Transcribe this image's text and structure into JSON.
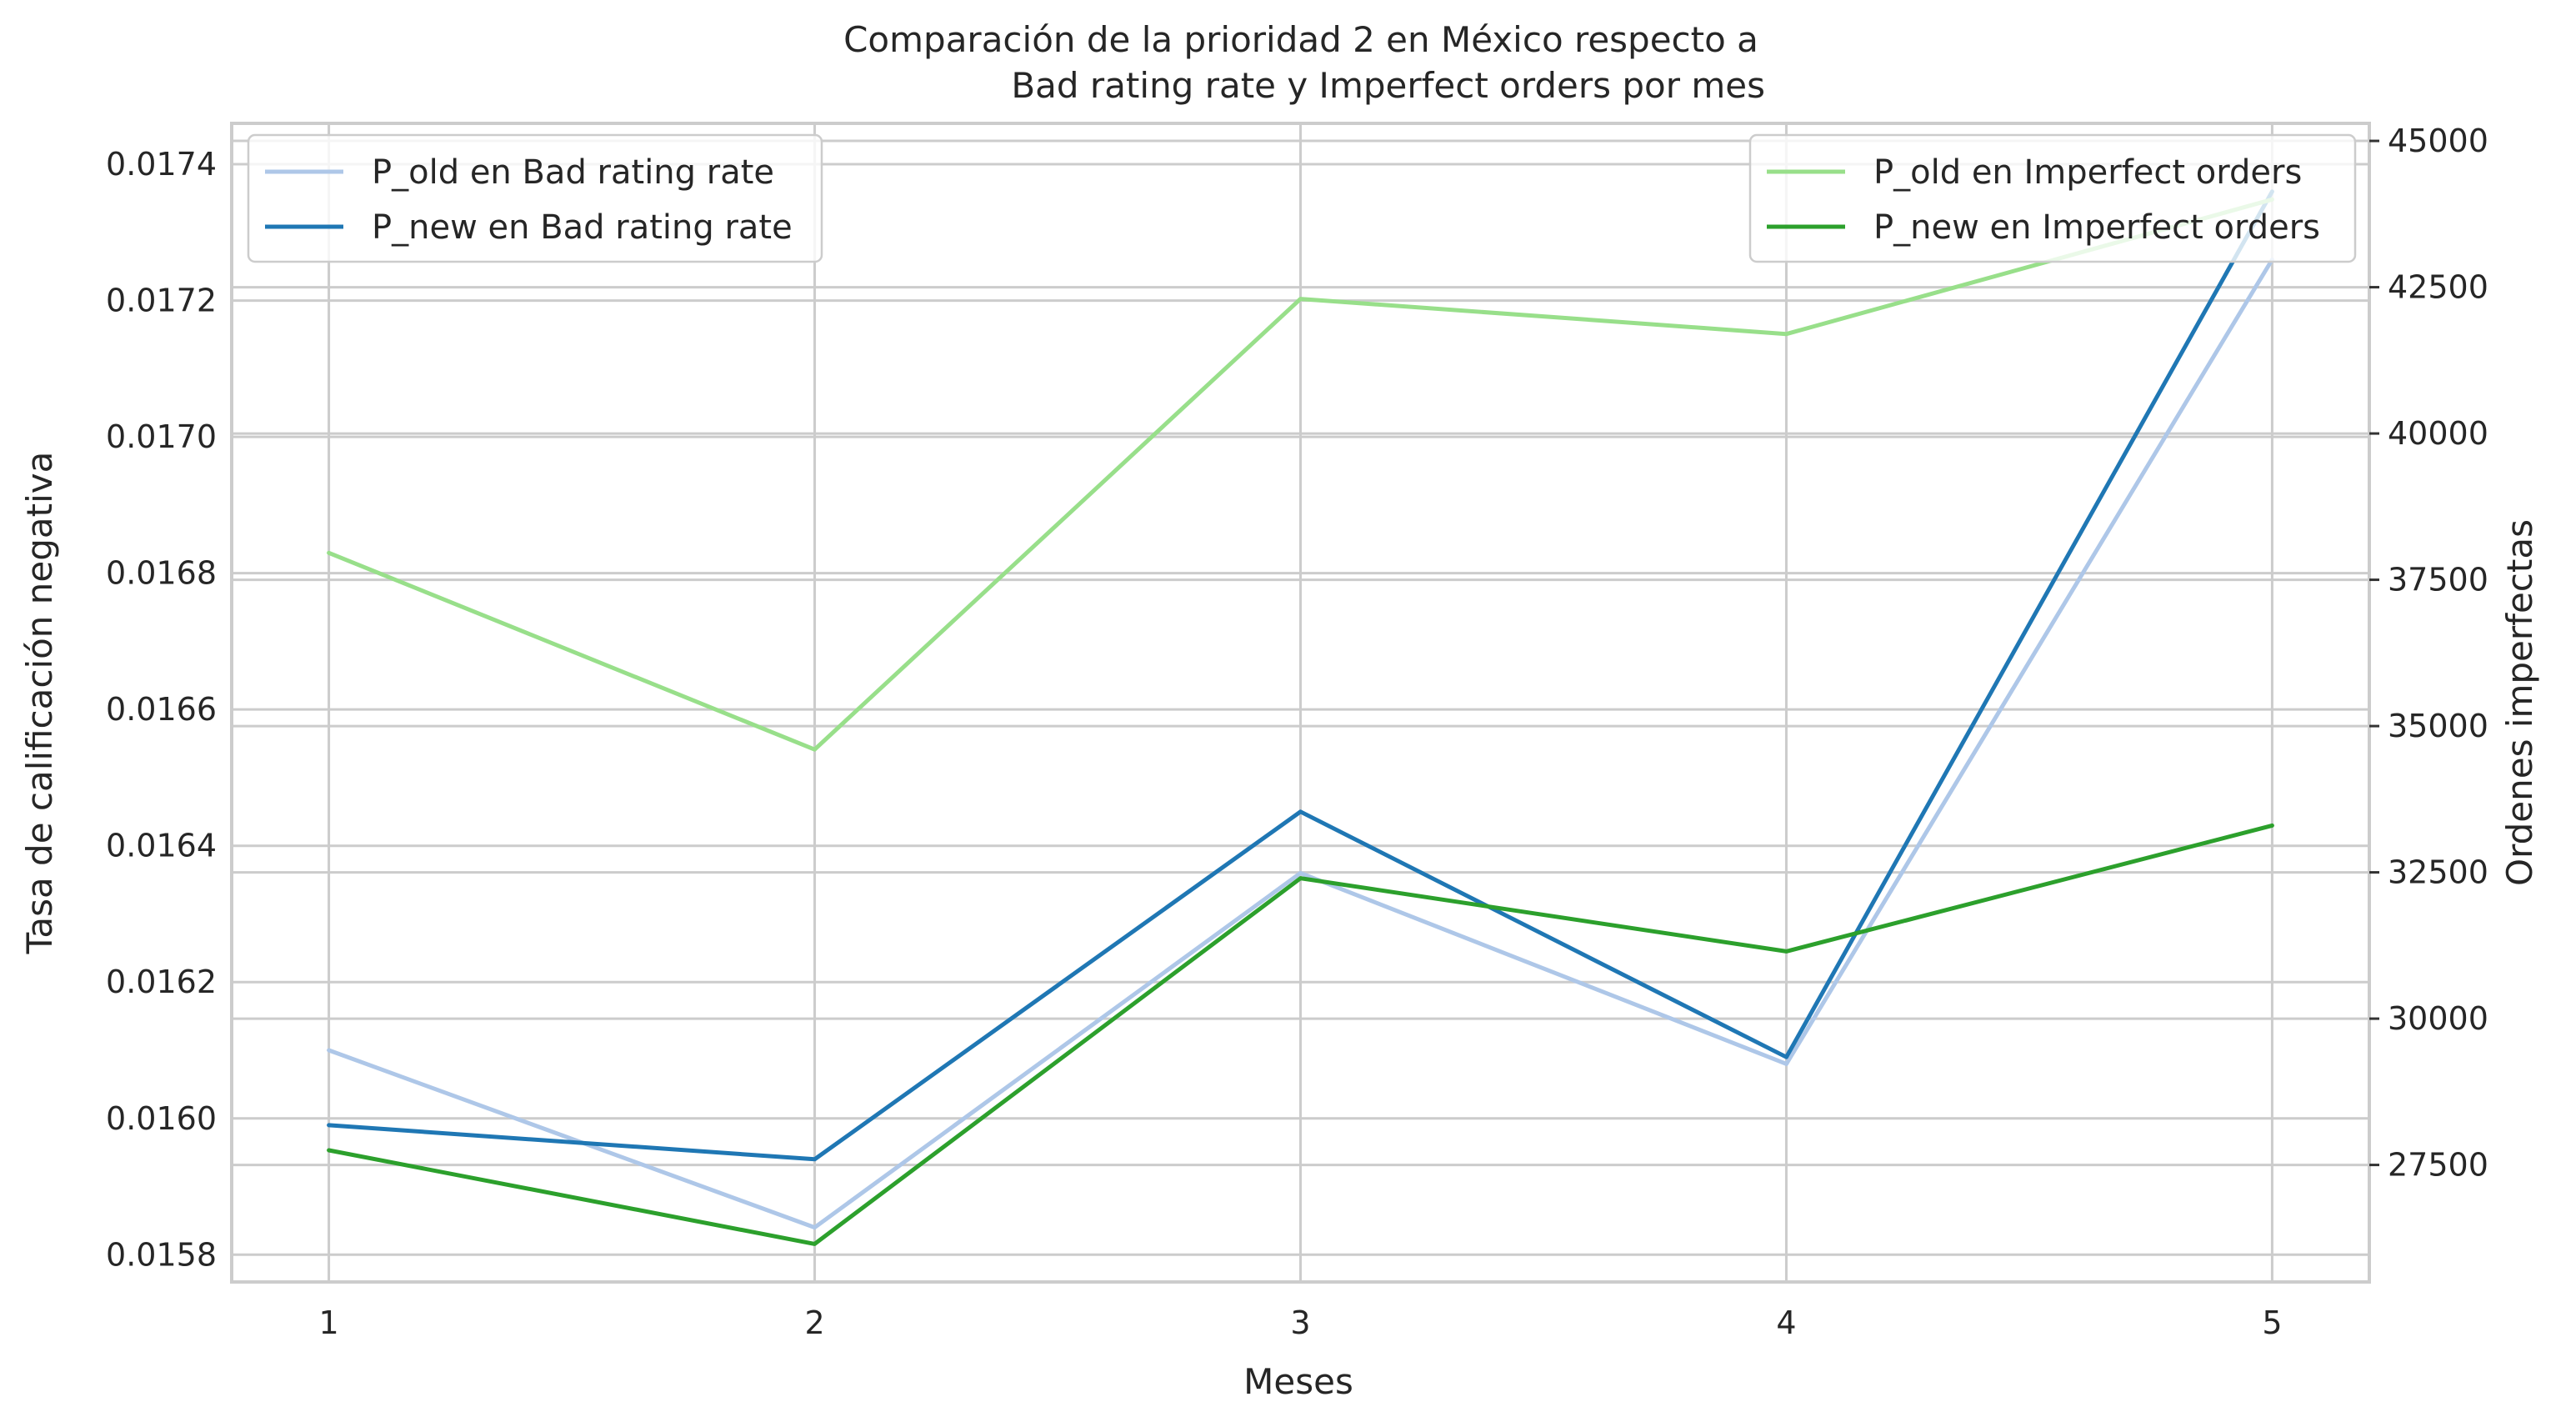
{
  "chart_data": {
    "type": "line",
    "title_lines": [
      "Comparación de la prioridad 2 en México respecto a",
      "Bad rating rate y Imperfect orders por mes"
    ],
    "xlabel": "Meses",
    "ylabel_left": "Tasa de calificación negativa",
    "ylabel_right": "Ordenes imperfectas",
    "x": [
      1,
      2,
      3,
      4,
      5
    ],
    "x_ticks": [
      "1",
      "2",
      "3",
      "4",
      "5"
    ],
    "xlim": [
      0.8,
      5.2
    ],
    "ylim_left": [
      0.01576,
      0.01746
    ],
    "ylim_right": [
      25500,
      45300
    ],
    "y_ticks_left": [
      "0.0158",
      "0.0160",
      "0.0162",
      "0.0164",
      "0.0166",
      "0.0168",
      "0.0170",
      "0.0172",
      "0.0174"
    ],
    "y_ticks_right": [
      "27500",
      "30000",
      "32500",
      "35000",
      "37500",
      "40000",
      "42500",
      "45000"
    ],
    "grid": true,
    "series": [
      {
        "name": "P_old en Bad rating rate",
        "axis": "left",
        "color": "#aec7e8",
        "values": [
          0.0161,
          0.01584,
          0.01636,
          0.01608,
          0.01726
        ]
      },
      {
        "name": "P_new en Bad rating rate",
        "axis": "left",
        "color": "#1f77b4",
        "values": [
          0.01599,
          0.01594,
          0.01645,
          0.01609,
          0.01736
        ]
      },
      {
        "name": "P_old en Imperfect orders",
        "axis": "right",
        "color": "#98df8a",
        "values": [
          37960,
          34600,
          42300,
          41700,
          44000
        ]
      },
      {
        "name": "P_new en Imperfect orders",
        "axis": "right",
        "color": "#2ca02c",
        "values": [
          27750,
          26150,
          32400,
          31150,
          33300
        ]
      }
    ],
    "legends": [
      {
        "placement": "upper left",
        "series": [
          0,
          1
        ]
      },
      {
        "placement": "upper right",
        "series": [
          2,
          3
        ]
      }
    ]
  }
}
